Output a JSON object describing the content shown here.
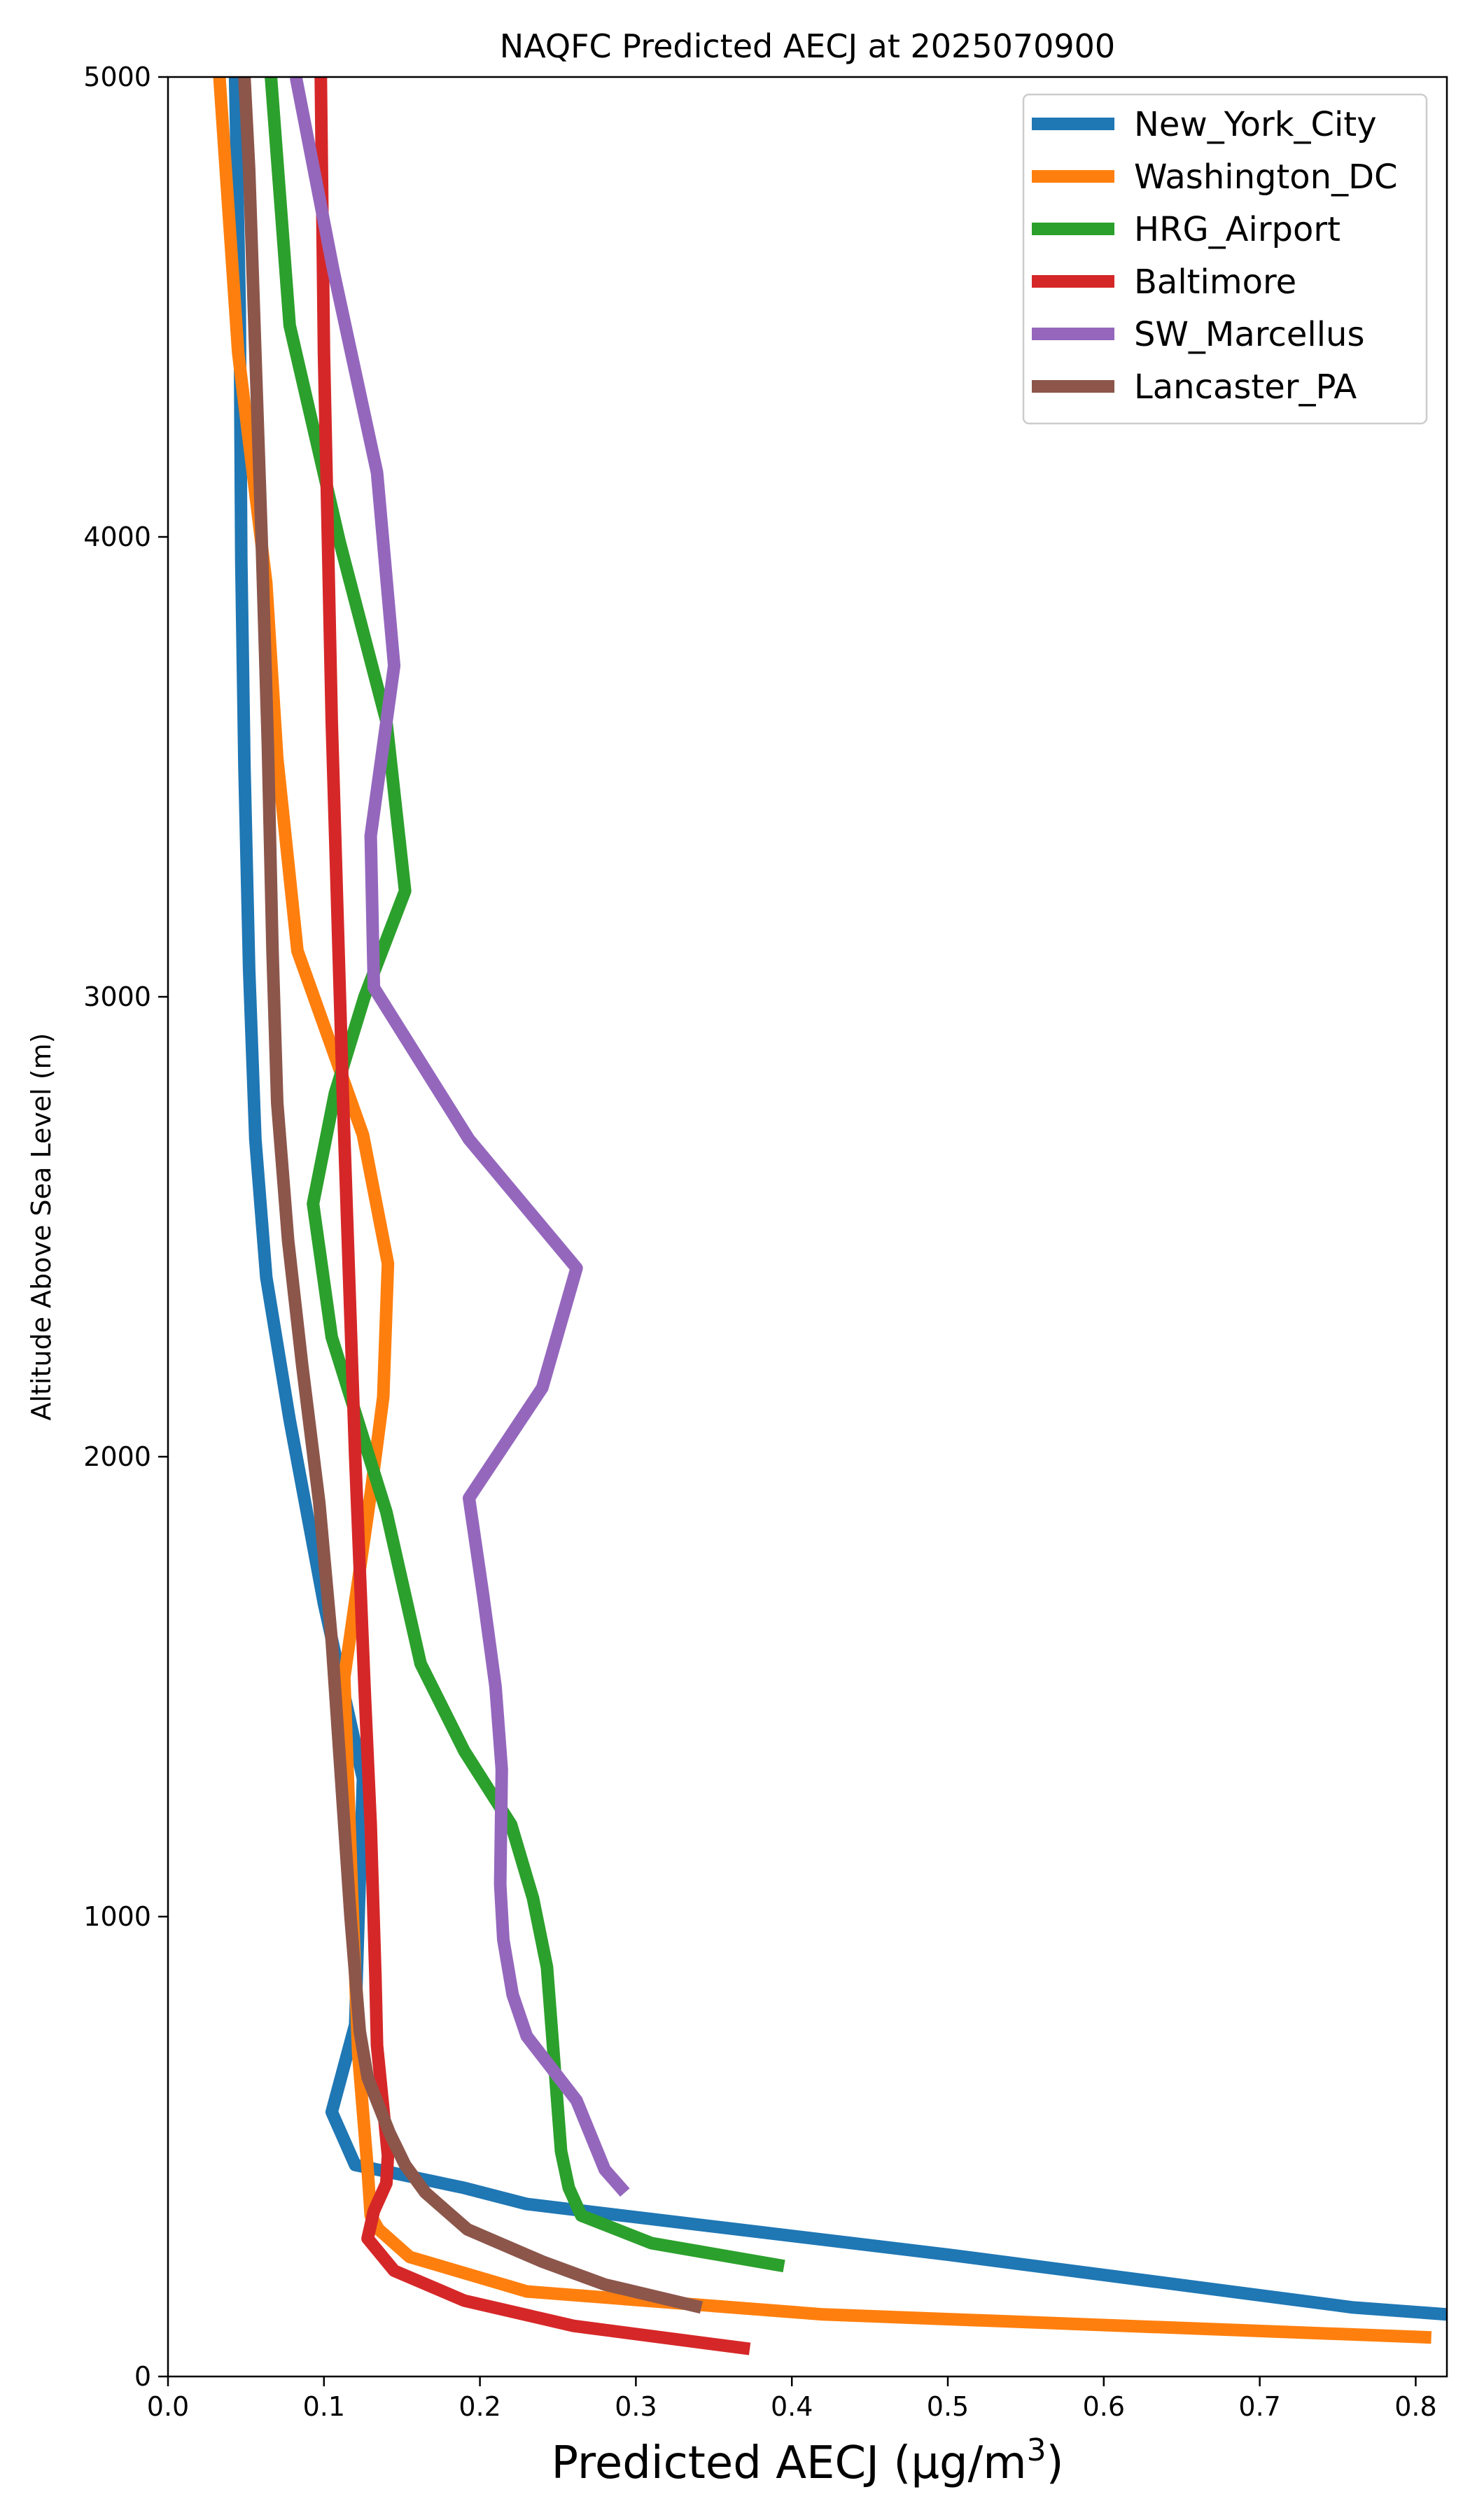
{
  "chart_data": {
    "type": "line",
    "title": "NAQFC Predicted AECJ at 2025070900",
    "xlabel": "Predicted AECJ (μg/m³)",
    "ylabel": "Altitude Above Sea Level (m)",
    "xlim": [
      0,
      0.82
    ],
    "ylim": [
      0,
      5000
    ],
    "xticks": [
      0.0,
      0.1,
      0.2,
      0.3,
      0.4,
      0.5,
      0.6,
      0.7,
      0.8
    ],
    "xtick_labels": [
      "0.0",
      "0.1",
      "0.2",
      "0.3",
      "0.4",
      "0.5",
      "0.6",
      "0.7",
      "0.8"
    ],
    "yticks": [
      0,
      1000,
      2000,
      3000,
      4000,
      5000
    ],
    "ytick_labels": [
      "0",
      "1000",
      "2000",
      "3000",
      "4000",
      "5000"
    ],
    "grid": false,
    "legend_position": "top-right",
    "series": [
      {
        "name": "New_York_City",
        "color": "#1f77b4",
        "points": [
          [
            0.82,
            135
          ],
          [
            0.76,
            150
          ],
          [
            0.5,
            265
          ],
          [
            0.23,
            375
          ],
          [
            0.19,
            410
          ],
          [
            0.12,
            460
          ],
          [
            0.105,
            575
          ],
          [
            0.12,
            765
          ],
          [
            0.125,
            1300
          ],
          [
            0.1,
            1680
          ],
          [
            0.078,
            2080
          ],
          [
            0.063,
            2390
          ],
          [
            0.056,
            2690
          ],
          [
            0.052,
            3060
          ],
          [
            0.049,
            3500
          ],
          [
            0.047,
            3950
          ],
          [
            0.046,
            4500
          ],
          [
            0.043,
            5000
          ]
        ]
      },
      {
        "name": "Washington_DC",
        "color": "#ff7f0e",
        "points": [
          [
            0.81,
            85
          ],
          [
            0.42,
            135
          ],
          [
            0.23,
            185
          ],
          [
            0.155,
            260
          ],
          [
            0.135,
            320
          ],
          [
            0.13,
            350
          ],
          [
            0.128,
            450
          ],
          [
            0.122,
            700
          ],
          [
            0.118,
            1050
          ],
          [
            0.113,
            1520
          ],
          [
            0.13,
            1920
          ],
          [
            0.138,
            2130
          ],
          [
            0.141,
            2420
          ],
          [
            0.125,
            2700
          ],
          [
            0.083,
            3100
          ],
          [
            0.07,
            3520
          ],
          [
            0.063,
            3900
          ],
          [
            0.045,
            4400
          ],
          [
            0.037,
            4800
          ],
          [
            0.033,
            5000
          ]
        ]
      },
      {
        "name": "HRG_Airport",
        "color": "#2ca02c",
        "points": [
          [
            0.395,
            240
          ],
          [
            0.31,
            290
          ],
          [
            0.265,
            350
          ],
          [
            0.257,
            410
          ],
          [
            0.252,
            490
          ],
          [
            0.243,
            890
          ],
          [
            0.234,
            1040
          ],
          [
            0.22,
            1200
          ],
          [
            0.19,
            1360
          ],
          [
            0.162,
            1550
          ],
          [
            0.14,
            1880
          ],
          [
            0.105,
            2260
          ],
          [
            0.093,
            2550
          ],
          [
            0.107,
            2790
          ],
          [
            0.126,
            3000
          ],
          [
            0.152,
            3230
          ],
          [
            0.14,
            3600
          ],
          [
            0.11,
            3990
          ],
          [
            0.078,
            4460
          ],
          [
            0.066,
            5000
          ]
        ]
      },
      {
        "name": "Baltimore",
        "color": "#d62728",
        "points": [
          [
            0.373,
            60
          ],
          [
            0.26,
            110
          ],
          [
            0.19,
            165
          ],
          [
            0.145,
            230
          ],
          [
            0.128,
            300
          ],
          [
            0.132,
            360
          ],
          [
            0.14,
            420
          ],
          [
            0.141,
            480
          ],
          [
            0.139,
            550
          ],
          [
            0.134,
            720
          ],
          [
            0.133,
            870
          ],
          [
            0.13,
            1200
          ],
          [
            0.126,
            1500
          ],
          [
            0.12,
            2000
          ],
          [
            0.112,
            2800
          ],
          [
            0.105,
            3600
          ],
          [
            0.1,
            4400
          ],
          [
            0.098,
            5000
          ]
        ]
      },
      {
        "name": "SW_Marcellus",
        "color": "#9467bd",
        "points": [
          [
            0.293,
            400
          ],
          [
            0.28,
            450
          ],
          [
            0.262,
            600
          ],
          [
            0.23,
            740
          ],
          [
            0.221,
            830
          ],
          [
            0.215,
            950
          ],
          [
            0.213,
            1070
          ],
          [
            0.214,
            1320
          ],
          [
            0.21,
            1500
          ],
          [
            0.202,
            1700
          ],
          [
            0.193,
            1910
          ],
          [
            0.24,
            2150
          ],
          [
            0.262,
            2410
          ],
          [
            0.193,
            2690
          ],
          [
            0.132,
            3020
          ],
          [
            0.13,
            3350
          ],
          [
            0.145,
            3720
          ],
          [
            0.134,
            4140
          ],
          [
            0.106,
            4580
          ],
          [
            0.082,
            5000
          ]
        ]
      },
      {
        "name": "Lancaster_PA",
        "color": "#8c564b",
        "points": [
          [
            0.342,
            150
          ],
          [
            0.28,
            200
          ],
          [
            0.24,
            250
          ],
          [
            0.192,
            320
          ],
          [
            0.165,
            400
          ],
          [
            0.152,
            460
          ],
          [
            0.142,
            530
          ],
          [
            0.128,
            650
          ],
          [
            0.123,
            750
          ],
          [
            0.117,
            1000
          ],
          [
            0.112,
            1250
          ],
          [
            0.105,
            1600
          ],
          [
            0.097,
            1900
          ],
          [
            0.086,
            2200
          ],
          [
            0.077,
            2470
          ],
          [
            0.07,
            2770
          ],
          [
            0.067,
            3100
          ],
          [
            0.064,
            3550
          ],
          [
            0.06,
            4000
          ],
          [
            0.056,
            4400
          ],
          [
            0.052,
            4800
          ],
          [
            0.049,
            5000
          ]
        ]
      }
    ]
  }
}
